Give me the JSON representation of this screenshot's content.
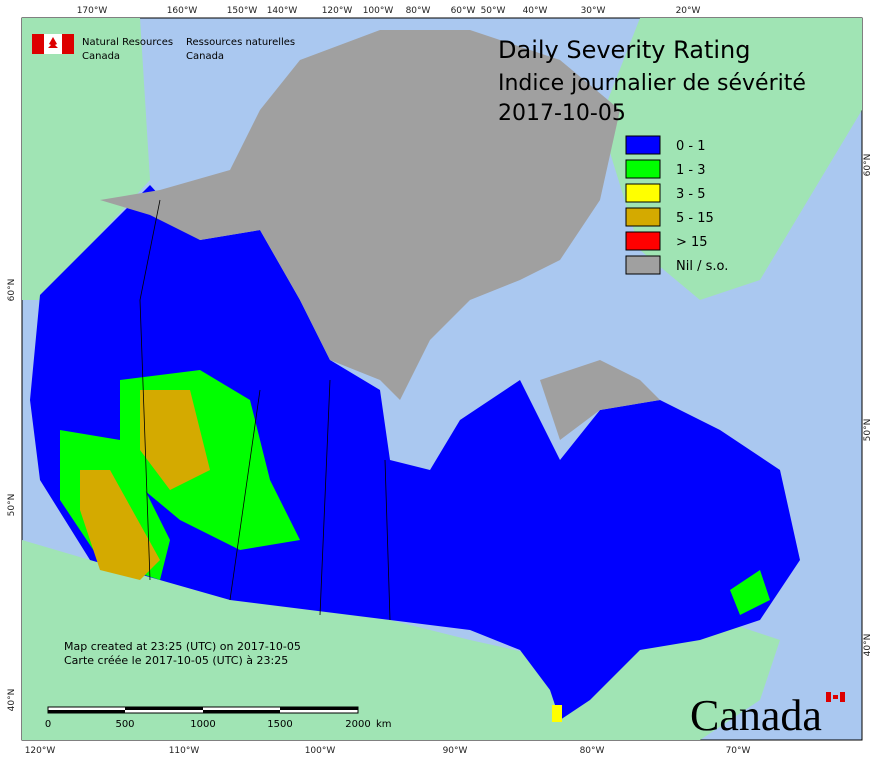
{
  "header": {
    "agency_en": [
      "Natural Resources",
      "Canada"
    ],
    "agency_fr": [
      "Ressources naturelles",
      "Canada"
    ]
  },
  "title": {
    "line1": "Daily Severity Rating",
    "line2": "Indice journalier de sévérité",
    "date": "2017-10-05"
  },
  "legend": [
    {
      "label": "0 - 1",
      "color": "#0000ff"
    },
    {
      "label": "1 - 3",
      "color": "#00ff00"
    },
    {
      "label": "3 - 5",
      "color": "#ffff00"
    },
    {
      "label": "5 - 15",
      "color": "#d4aa00"
    },
    {
      "label": "> 15",
      "color": "#ff0000"
    },
    {
      "label": "Nil / s.o.",
      "color": "#a0a0a0"
    }
  ],
  "graticule": {
    "top": [
      "170°W",
      "160°W",
      "150°W",
      "140°W",
      "120°W",
      "100°W",
      "80°W",
      "60°W",
      "50°W",
      "40°W",
      "30°W",
      "20°W"
    ],
    "bottom": [
      "120°W",
      "110°W",
      "100°W",
      "90°W",
      "80°W",
      "70°W"
    ],
    "left": [
      "60°N",
      "50°N",
      "40°N"
    ],
    "right": [
      "60°N",
      "50°N",
      "40°N"
    ]
  },
  "footnote": [
    "Map created at 23:25 (UTC) on 2017-10-05",
    "Carte créée le 2017-10-05 (UTC) à 23:25"
  ],
  "scale_bar": {
    "labels": [
      0,
      500,
      1000,
      1500,
      2000
    ],
    "unit": "km"
  },
  "wordmark": "Canada"
}
